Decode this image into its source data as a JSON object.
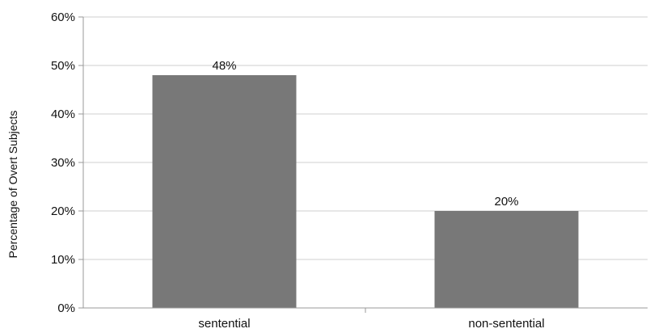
{
  "chart_data": {
    "type": "bar",
    "categories": [
      "sentential",
      "non-sentential"
    ],
    "values": [
      48,
      20
    ],
    "data_labels": [
      "48%",
      "20%"
    ],
    "title": "",
    "xlabel": "",
    "ylabel": "Percentage of Overt Subjects",
    "ylim": [
      0,
      60
    ],
    "yticks": [
      0,
      10,
      20,
      30,
      40,
      50,
      60
    ],
    "ytick_labels": [
      "0%",
      "10%",
      "20%",
      "30%",
      "40%",
      "50%",
      "60%"
    ],
    "grid": true,
    "legend": "none",
    "bar_color": "#787878"
  }
}
